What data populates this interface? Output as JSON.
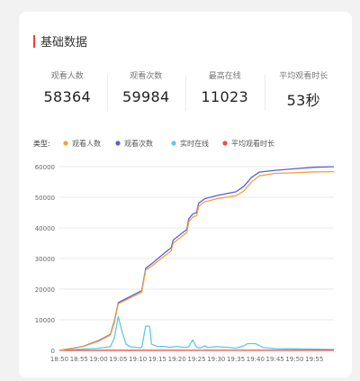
{
  "section": {
    "title": "基础数据"
  },
  "stats": [
    {
      "label": "观看人数",
      "value": "58364"
    },
    {
      "label": "观看次数",
      "value": "59984"
    },
    {
      "label": "最高在线",
      "value": "11023"
    },
    {
      "label": "平均观看时长",
      "value": "53秒"
    }
  ],
  "chart_data": {
    "type": "line",
    "legend_title": "类型:",
    "legend_position": "top-left",
    "grid": true,
    "ylim": [
      0,
      60000
    ],
    "y_ticks": [
      "0",
      "10000",
      "20000",
      "30000",
      "40000",
      "50000",
      "60000"
    ],
    "x_ticks": [
      "18:50",
      "18:55",
      "19:00",
      "19:05",
      "19:10",
      "19:15",
      "19:20",
      "19:25",
      "19:30",
      "19:35",
      "19:40",
      "19:45",
      "19:50",
      "19:55"
    ],
    "x_domain_minutes": [
      0,
      70
    ],
    "series": [
      {
        "name": "观看人数",
        "color": "#f3a23a",
        "points": [
          [
            0,
            0
          ],
          [
            6,
            1200
          ],
          [
            10,
            3000
          ],
          [
            13,
            5000
          ],
          [
            14,
            9000
          ],
          [
            15,
            15200
          ],
          [
            21,
            19000
          ],
          [
            22,
            26200
          ],
          [
            24,
            28000
          ],
          [
            27,
            31000
          ],
          [
            28.5,
            32500
          ],
          [
            29,
            35000
          ],
          [
            31,
            37000
          ],
          [
            32.5,
            38500
          ],
          [
            33,
            42000
          ],
          [
            34,
            43500
          ],
          [
            35,
            44000
          ],
          [
            35.5,
            47000
          ],
          [
            37,
            48500
          ],
          [
            40,
            49500
          ],
          [
            45,
            50500
          ],
          [
            47,
            52000
          ],
          [
            49,
            55000
          ],
          [
            51,
            57000
          ],
          [
            55,
            57800
          ],
          [
            60,
            58000
          ],
          [
            65,
            58300
          ],
          [
            70,
            58364
          ]
        ]
      },
      {
        "name": "观看次数",
        "color": "#5d5de0",
        "points": [
          [
            0,
            0
          ],
          [
            6,
            1300
          ],
          [
            10,
            3200
          ],
          [
            13,
            5200
          ],
          [
            14,
            9500
          ],
          [
            15,
            15600
          ],
          [
            21,
            19500
          ],
          [
            22,
            26800
          ],
          [
            24,
            28800
          ],
          [
            27,
            32000
          ],
          [
            28.5,
            33500
          ],
          [
            29,
            36000
          ],
          [
            31,
            38000
          ],
          [
            32.5,
            39500
          ],
          [
            33,
            43000
          ],
          [
            34,
            44500
          ],
          [
            35,
            45000
          ],
          [
            35.5,
            48000
          ],
          [
            37,
            49500
          ],
          [
            40,
            50500
          ],
          [
            45,
            51800
          ],
          [
            47,
            53500
          ],
          [
            49,
            56500
          ],
          [
            51,
            58200
          ],
          [
            55,
            58800
          ],
          [
            60,
            59300
          ],
          [
            65,
            59800
          ],
          [
            70,
            59984
          ]
        ]
      },
      {
        "name": "实时在线",
        "color": "#5cc8f0",
        "points": [
          [
            0,
            0
          ],
          [
            6,
            400
          ],
          [
            10,
            700
          ],
          [
            13,
            1200
          ],
          [
            14,
            4000
          ],
          [
            15,
            11023
          ],
          [
            16,
            6000
          ],
          [
            17,
            2000
          ],
          [
            18,
            1200
          ],
          [
            20,
            900
          ],
          [
            20.5,
            800
          ],
          [
            21,
            1000
          ],
          [
            22,
            7900
          ],
          [
            23,
            7900
          ],
          [
            23.5,
            2000
          ],
          [
            25,
            1300
          ],
          [
            27,
            1300
          ],
          [
            28,
            1000
          ],
          [
            30,
            1300
          ],
          [
            32,
            1000
          ],
          [
            33,
            1200
          ],
          [
            34,
            3400
          ],
          [
            35,
            1000
          ],
          [
            36,
            800
          ],
          [
            37,
            1500
          ],
          [
            38,
            900
          ],
          [
            40,
            1200
          ],
          [
            43,
            1000
          ],
          [
            45,
            700
          ],
          [
            47,
            1500
          ],
          [
            48,
            2200
          ],
          [
            50,
            2200
          ],
          [
            52,
            900
          ],
          [
            55,
            600
          ],
          [
            60,
            500
          ],
          [
            65,
            400
          ],
          [
            70,
            300
          ]
        ]
      },
      {
        "name": "平均观看时长",
        "color": "#ee4f40",
        "points": [
          [
            0,
            0
          ],
          [
            70,
            53
          ]
        ]
      }
    ]
  }
}
